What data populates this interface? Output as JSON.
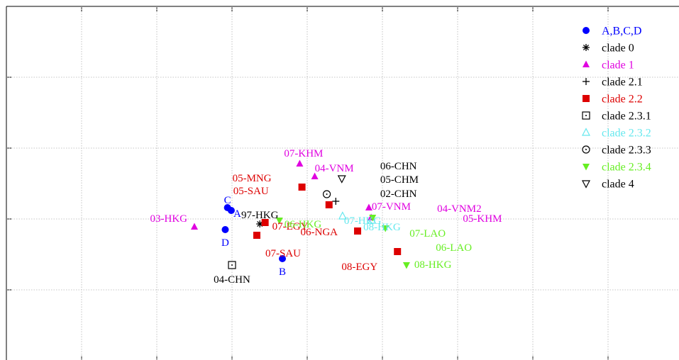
{
  "chart_data": {
    "type": "scatter",
    "title": "",
    "xlabel": "",
    "ylabel": "",
    "xlim": [
      0,
      9
    ],
    "ylim": [
      0,
      5
    ],
    "grid": true,
    "legend_position": "top-right",
    "series": [
      {
        "name": "A,B,C,D",
        "marker": "filled-circle",
        "color": "#0000ff",
        "points": [
          {
            "x": 2.99,
            "y": 2.12,
            "label": "A"
          },
          {
            "x": 3.67,
            "y": 1.44,
            "label": "B"
          },
          {
            "x": 2.94,
            "y": 2.16,
            "label": "C"
          },
          {
            "x": 2.91,
            "y": 1.85,
            "label": "D"
          }
        ]
      },
      {
        "name": "clade 0",
        "marker": "asterisk",
        "color": "#000000",
        "points": [
          {
            "x": 3.37,
            "y": 1.93,
            "label": "97-HKG"
          }
        ]
      },
      {
        "name": "clade 1",
        "marker": "filled-triangle",
        "color": "#e000e0",
        "points": [
          {
            "x": 2.5,
            "y": 1.89,
            "label": "03-HKG"
          },
          {
            "x": 3.9,
            "y": 2.78,
            "label": "07-KHM"
          },
          {
            "x": 4.1,
            "y": 2.6,
            "label": "04-VNM"
          },
          {
            "x": 4.82,
            "y": 2.16,
            "label": "07-VNM"
          },
          {
            "x": 4.85,
            "y": 2.02,
            "label": "04-VNM2"
          }
        ]
      },
      {
        "name": "clade 2.1",
        "marker": "plus",
        "color": "#000000",
        "points": [
          {
            "x": 4.38,
            "y": 2.25,
            "label": ""
          }
        ]
      },
      {
        "name": "clade 2.2",
        "marker": "filled-square",
        "color": "#dd0000",
        "points": [
          {
            "x": 3.93,
            "y": 2.45,
            "label": "05-MNG"
          },
          {
            "x": 4.29,
            "y": 2.2,
            "label": "05-SAU"
          },
          {
            "x": 3.44,
            "y": 1.95,
            "label": "07-EGY"
          },
          {
            "x": 3.33,
            "y": 1.77,
            "label": "07-SAU"
          },
          {
            "x": 4.67,
            "y": 1.83,
            "label": "06-NGA"
          },
          {
            "x": 5.2,
            "y": 1.54,
            "label": "08-EGY"
          }
        ]
      },
      {
        "name": "clade 2.3.1",
        "marker": "dotted-square",
        "color": "#000000",
        "points": [
          {
            "x": 3.0,
            "y": 1.35,
            "label": "04-CHN"
          }
        ]
      },
      {
        "name": "clade 2.3.2",
        "marker": "open-triangle",
        "color": "#66e8ee",
        "points": [
          {
            "x": 4.47,
            "y": 2.04,
            "label": "07-HKG"
          },
          {
            "x": 4.86,
            "y": 1.98,
            "label": "08-HKG"
          }
        ]
      },
      {
        "name": "clade 2.3.3",
        "marker": "dotted-circle",
        "color": "#000000",
        "points": [
          {
            "x": 4.26,
            "y": 2.35,
            "label": ""
          }
        ]
      },
      {
        "name": "clade 2.3.4",
        "marker": "filled-inverted-triangle",
        "color": "#66ee22",
        "points": [
          {
            "x": 3.63,
            "y": 1.98,
            "label": "06-HKG"
          },
          {
            "x": 4.87,
            "y": 2.02,
            "label": ""
          },
          {
            "x": 5.04,
            "y": 1.87,
            "label": "07-LAO"
          },
          {
            "x": 5.32,
            "y": 1.35,
            "label": "08-HKG"
          }
        ]
      },
      {
        "name": "clade 4",
        "marker": "open-inverted-triangle",
        "color": "#000000",
        "points": [
          {
            "x": 4.46,
            "y": 2.57,
            "label": ""
          }
        ]
      }
    ],
    "annotations": [
      {
        "text": "06-CHN",
        "color": "#000000",
        "x": 4.97,
        "y": 2.7
      },
      {
        "text": "05-CHM",
        "color": "#000000",
        "x": 4.97,
        "y": 2.51
      },
      {
        "text": "02-CHN",
        "color": "#000000",
        "x": 4.97,
        "y": 2.31
      },
      {
        "text": "05-KHM",
        "color": "#e000e0",
        "x": 6.07,
        "y": 1.96
      },
      {
        "text": "06-LAO",
        "color": "#66ee22",
        "x": 5.71,
        "y": 1.55
      }
    ]
  }
}
